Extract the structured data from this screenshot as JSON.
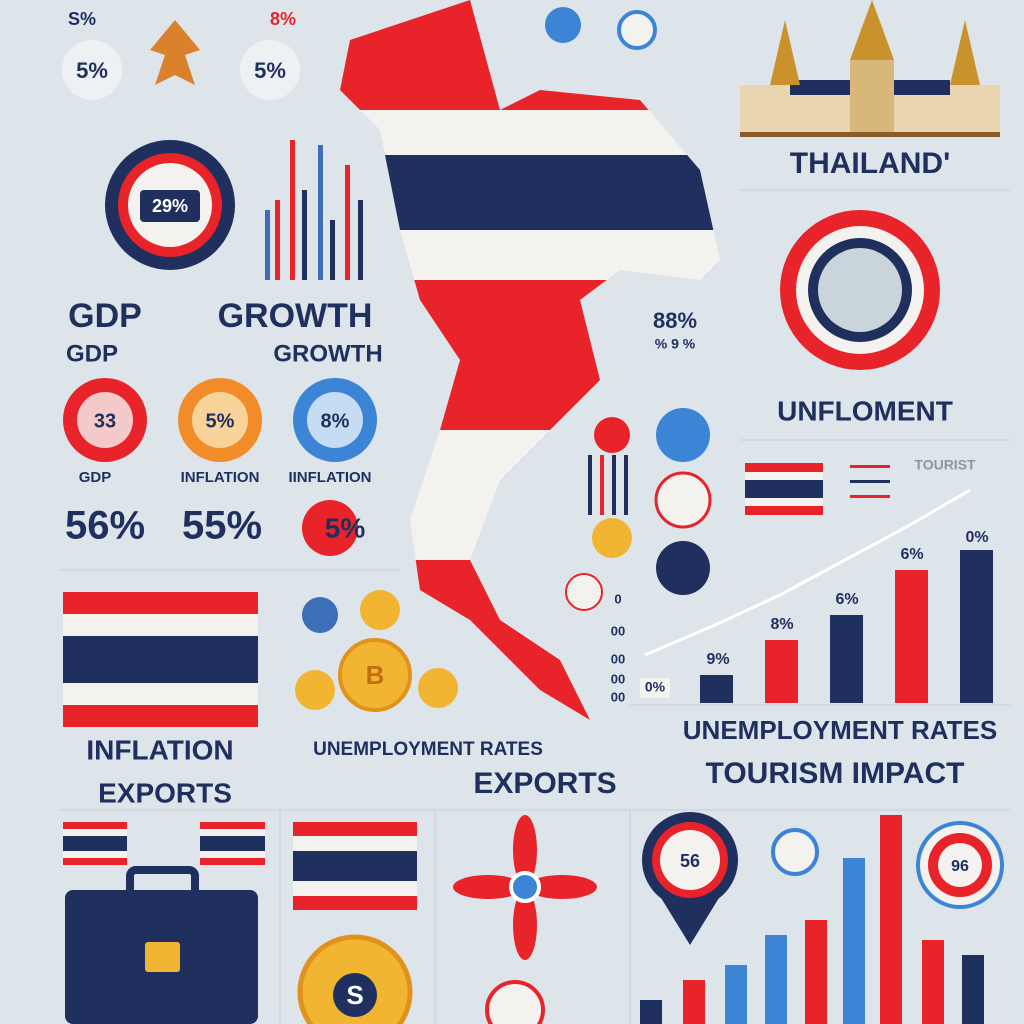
{
  "top_badges": [
    "S%",
    "5%",
    "8%",
    "5%"
  ],
  "header": {
    "title": "THAILAND'"
  },
  "gdp_panel": {
    "donut_label": "29%",
    "title_large": [
      "GDP",
      "GROWTH"
    ],
    "title_small": [
      "GDP",
      "GROWTH"
    ]
  },
  "indicators": [
    {
      "value": "33",
      "label": "GDP",
      "big": "56%"
    },
    {
      "value": "5%",
      "label": "INFLATION",
      "big": "55%"
    },
    {
      "value": "8%",
      "label": "IINFLATION",
      "big": "5%"
    }
  ],
  "map_labels": {
    "percent": "88%",
    "sub": "% 9 %"
  },
  "unemployment_panel": {
    "title": "UNFLOMENT",
    "tourist": "TOURIST"
  },
  "trend_chart": {
    "axis_labels": [
      "0",
      "00",
      "00",
      "00",
      "00"
    ],
    "bar_labels": [
      "0%",
      "9%",
      "8%",
      "6%",
      "6%",
      "0%"
    ]
  },
  "captions": [
    "INFLATION",
    "EXPORTS",
    "UNEMPLOYMENT RATES",
    "EXPORTS",
    "UNEMPLOYMENT RATES",
    "TOURISM IMPACT"
  ],
  "bottom": {
    "coin_b": "B",
    "coin_s": "S",
    "pin_label": "56",
    "badge_label": "96"
  }
}
